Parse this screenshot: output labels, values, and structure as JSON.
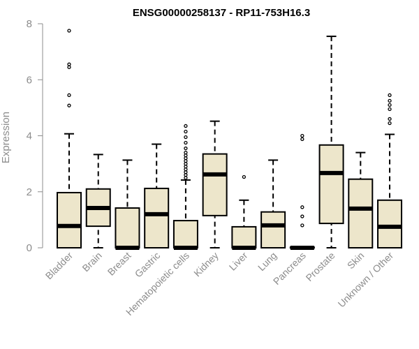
{
  "chart_data": {
    "type": "boxplot",
    "title": "ENSG00000258137 - RP11-753H16.3",
    "xlabel": "",
    "ylabel": "Expression",
    "ylim": [
      0,
      8
    ],
    "yticks": [
      0,
      2,
      4,
      6,
      8
    ],
    "grid": false,
    "box_fill": "#ede6cb",
    "categories": [
      "Bladder",
      "Brain",
      "Breast",
      "Gastric",
      "Hematopoietic cells",
      "Kidney",
      "Liver",
      "Lung",
      "Pancreas",
      "Prostate",
      "Skin",
      "Unknown / Other"
    ],
    "boxes": [
      {
        "min": 0,
        "q1": 0,
        "median": 0.78,
        "q3": 1.97,
        "max": 4.07,
        "outliers": [
          5.08,
          5.45,
          6.45,
          6.55,
          7.75
        ]
      },
      {
        "min": 0,
        "q1": 0.77,
        "median": 1.42,
        "q3": 2.1,
        "max": 3.33,
        "outliers": []
      },
      {
        "min": 0,
        "q1": 0,
        "median": 0,
        "q3": 1.42,
        "max": 3.13,
        "outliers": []
      },
      {
        "min": 0,
        "q1": 0,
        "median": 1.2,
        "q3": 2.12,
        "max": 3.7,
        "outliers": []
      },
      {
        "min": 0,
        "q1": 0,
        "median": 0,
        "q3": 0.97,
        "max": 2.42,
        "outliers": [
          2.5,
          2.6,
          2.7,
          2.8,
          2.9,
          3.0,
          3.1,
          3.2,
          3.3,
          3.4,
          3.55,
          3.75,
          3.95,
          4.15,
          4.35
        ]
      },
      {
        "min": 0,
        "q1": 1.15,
        "median": 2.62,
        "q3": 3.35,
        "max": 4.52,
        "outliers": []
      },
      {
        "min": 0,
        "q1": 0,
        "median": 0,
        "q3": 0.75,
        "max": 1.7,
        "outliers": [
          2.53
        ]
      },
      {
        "min": 0,
        "q1": 0,
        "median": 0.8,
        "q3": 1.28,
        "max": 3.13,
        "outliers": []
      },
      {
        "min": 0,
        "q1": 0,
        "median": 0,
        "q3": 0.02,
        "max": 0.05,
        "outliers": [
          0.8,
          1.12,
          1.45,
          3.88,
          4.0
        ]
      },
      {
        "min": 0,
        "q1": 0.87,
        "median": 2.67,
        "q3": 3.67,
        "max": 7.55,
        "outliers": []
      },
      {
        "min": 0,
        "q1": 0,
        "median": 1.4,
        "q3": 2.45,
        "max": 3.4,
        "outliers": []
      },
      {
        "min": 0,
        "q1": 0,
        "median": 0.75,
        "q3": 1.7,
        "max": 4.05,
        "outliers": [
          4.45,
          4.6,
          4.95,
          5.1,
          5.25,
          5.45
        ]
      }
    ]
  }
}
